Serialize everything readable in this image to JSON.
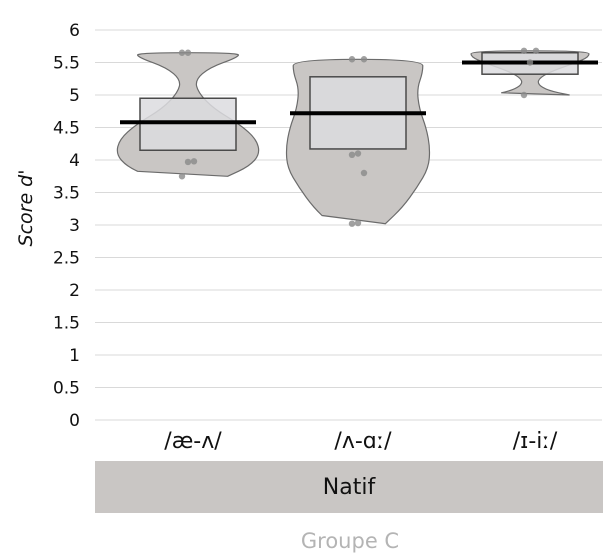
{
  "chart_data": {
    "type": "violin-box",
    "ylabel": "Score d'",
    "ylim": [
      0,
      6
    ],
    "yticks": [
      "0",
      "0.5",
      "1",
      "1.5",
      "2",
      "2.5",
      "3",
      "3.5",
      "4",
      "4.5",
      "5",
      "5.5",
      "6"
    ],
    "grid": true,
    "categories": [
      "/æ-ʌ/",
      "/ʌ-ɑː/",
      "/ɪ-iː/"
    ],
    "group_label": "Natif",
    "footer": "Groupe C",
    "series": [
      {
        "box": {
          "q1": 4.15,
          "median": 4.58,
          "q3": 4.95
        },
        "violin_range": [
          3.75,
          5.65
        ],
        "points": [
          3.75,
          3.97,
          3.98,
          5.65,
          5.65
        ]
      },
      {
        "box": {
          "q1": 4.17,
          "median": 4.72,
          "q3": 5.28
        },
        "violin_range": [
          3.02,
          5.55
        ],
        "points": [
          3.02,
          3.03,
          3.8,
          4.08,
          4.1,
          5.55,
          5.55
        ]
      },
      {
        "box": {
          "q1": 5.32,
          "median": 5.5,
          "q3": 5.65
        },
        "violin_range": [
          5.0,
          5.68
        ],
        "points": [
          5.0,
          5.5,
          5.68,
          5.68
        ]
      }
    ]
  }
}
